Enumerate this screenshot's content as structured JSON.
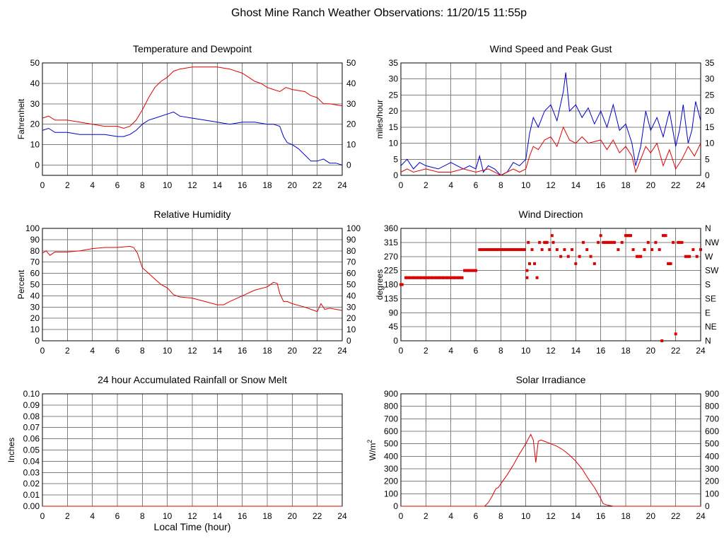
{
  "page_title": "Ghost Mine Ranch Weather Observations: 11/20/15 11:55p",
  "colors": {
    "red": "#e00000",
    "blue": "#0000c8"
  },
  "chart_data": [
    {
      "id": "temp",
      "type": "line",
      "title": "Temperature and Dewpoint",
      "ylabel": "Fahrenheit",
      "xlabel": "",
      "xlim": [
        0,
        24
      ],
      "ylim": [
        -5,
        50
      ],
      "yticks": [
        0,
        10,
        20,
        30,
        40,
        50
      ],
      "yticks_right": [
        0,
        10,
        20,
        30,
        40,
        50
      ],
      "xticks": [
        0,
        2,
        4,
        6,
        8,
        10,
        12,
        14,
        16,
        18,
        20,
        22,
        24
      ],
      "grid": true,
      "series": [
        {
          "color": "#e00000",
          "x": [
            0,
            0.5,
            1,
            2,
            3,
            4,
            5,
            6,
            6.5,
            7,
            7.5,
            8,
            8.5,
            9,
            9.5,
            10,
            10.5,
            11,
            12,
            13,
            14,
            15,
            16,
            16.5,
            17,
            17.5,
            18,
            18.5,
            19,
            19.5,
            20,
            21,
            21.5,
            22,
            22.5,
            23,
            24
          ],
          "y": [
            23,
            24,
            22,
            22,
            21,
            20,
            19,
            19,
            18,
            19,
            22,
            27,
            33,
            38,
            41,
            43,
            46,
            47,
            48,
            48,
            48,
            47,
            45,
            43,
            41,
            40,
            38,
            37,
            36,
            38,
            37,
            36,
            34,
            33,
            30,
            30,
            29
          ]
        },
        {
          "color": "#0000c8",
          "x": [
            0,
            0.5,
            1,
            2,
            3,
            4,
            5,
            6,
            6.5,
            7,
            7.5,
            8,
            8.5,
            9,
            10,
            10.5,
            11,
            12,
            13,
            14,
            15,
            16,
            17,
            18,
            18.5,
            19,
            19.3,
            19.6,
            20,
            20.5,
            21,
            21.5,
            22,
            22.5,
            23,
            23.5,
            24
          ],
          "y": [
            17,
            18,
            16,
            16,
            15,
            15,
            15,
            14,
            14,
            15,
            17,
            20,
            22,
            23,
            25,
            26,
            24,
            23,
            22,
            21,
            20,
            21,
            21,
            20,
            20,
            19,
            14,
            11,
            10,
            8,
            5,
            2,
            2,
            3,
            1,
            1,
            0
          ]
        }
      ]
    },
    {
      "id": "wind",
      "type": "line",
      "title": "Wind Speed and Peak Gust",
      "ylabel": "miles/hour",
      "xlabel": "",
      "xlim": [
        0,
        24
      ],
      "ylim": [
        0,
        35
      ],
      "yticks": [
        0,
        5,
        10,
        15,
        20,
        25,
        30,
        35
      ],
      "yticks_right": [
        0,
        5,
        10,
        15,
        20,
        25,
        30,
        35
      ],
      "xticks": [
        0,
        2,
        4,
        6,
        8,
        10,
        12,
        14,
        16,
        18,
        20,
        22,
        24
      ],
      "grid": true,
      "series": [
        {
          "color": "#0000c8",
          "x": [
            0,
            0.5,
            1,
            1.5,
            2,
            3,
            4,
            5,
            5.5,
            6,
            6.3,
            6.6,
            7,
            7.5,
            8,
            8.5,
            9,
            9.5,
            10,
            10.3,
            10.6,
            11,
            11.5,
            12,
            12.5,
            13,
            13.2,
            13.5,
            14,
            14.5,
            15,
            15.5,
            16,
            16.5,
            17,
            17.5,
            18,
            18.5,
            18.8,
            19.2,
            19.6,
            20,
            20.5,
            21,
            21.5,
            22,
            22.3,
            22.6,
            23,
            23.3,
            23.6,
            24
          ],
          "y": [
            3,
            5,
            2,
            4,
            3,
            2,
            4,
            2,
            3,
            2,
            6,
            1,
            3,
            2,
            0,
            1,
            4,
            3,
            5,
            13,
            18,
            15,
            20,
            22,
            17,
            26,
            32,
            20,
            22,
            18,
            21,
            16,
            20,
            15,
            22,
            14,
            16,
            10,
            3,
            9,
            20,
            14,
            18,
            12,
            20,
            9,
            14,
            22,
            10,
            14,
            23,
            17
          ]
        },
        {
          "color": "#e00000",
          "x": [
            0,
            0.5,
            1,
            2,
            3,
            4,
            5,
            6,
            7,
            8,
            8.5,
            9,
            9.5,
            10,
            10.3,
            10.6,
            11,
            11.5,
            12,
            12.5,
            13,
            13.5,
            14,
            14.5,
            15,
            16,
            16.5,
            17,
            17.5,
            18,
            18.5,
            18.8,
            19.2,
            19.6,
            20,
            20.5,
            21,
            21.5,
            22,
            22.5,
            23,
            23.5,
            24
          ],
          "y": [
            1,
            2,
            1,
            2,
            1,
            1,
            2,
            1,
            2,
            0,
            1,
            2,
            1,
            2,
            6,
            9,
            8,
            11,
            12,
            9,
            15,
            11,
            10,
            12,
            10,
            11,
            8,
            11,
            7,
            9,
            6,
            1,
            5,
            9,
            7,
            10,
            3,
            8,
            2,
            5,
            9,
            6,
            10
          ]
        }
      ]
    },
    {
      "id": "rh",
      "type": "line",
      "title": "Relative Humidity",
      "ylabel": "Percent",
      "xlabel": "",
      "xlim": [
        0,
        24
      ],
      "ylim": [
        0,
        100
      ],
      "yticks": [
        0,
        10,
        20,
        30,
        40,
        50,
        60,
        70,
        80,
        90,
        100
      ],
      "yticks_right": [
        0,
        10,
        20,
        30,
        40,
        50,
        60,
        70,
        80,
        90,
        100
      ],
      "xticks": [
        0,
        2,
        4,
        6,
        8,
        10,
        12,
        14,
        16,
        18,
        20,
        22,
        24
      ],
      "grid": true,
      "series": [
        {
          "color": "#e00000",
          "x": [
            0,
            0.3,
            0.6,
            1,
            2,
            3,
            4,
            5,
            6,
            7,
            7.3,
            7.6,
            8,
            8.5,
            9,
            9.5,
            10,
            10.5,
            11,
            12,
            13,
            14,
            14.5,
            15,
            16,
            17,
            18,
            18.5,
            18.8,
            19,
            19.3,
            19.6,
            20,
            21,
            21.5,
            22,
            22.3,
            22.6,
            23,
            24
          ],
          "y": [
            78,
            80,
            76,
            79,
            79,
            80,
            82,
            83,
            83,
            84,
            83,
            78,
            65,
            60,
            55,
            50,
            47,
            41,
            39,
            38,
            35,
            32,
            32,
            35,
            40,
            45,
            48,
            52,
            51,
            42,
            35,
            35,
            33,
            30,
            28,
            26,
            33,
            28,
            29,
            27
          ]
        }
      ]
    },
    {
      "id": "dir",
      "type": "scatter",
      "title": "Wind Direction",
      "ylabel": "degrees",
      "xlabel": "",
      "xlim": [
        0,
        24
      ],
      "ylim": [
        0,
        360
      ],
      "yticks": [
        0,
        45,
        90,
        135,
        180,
        225,
        270,
        315,
        360
      ],
      "yticks_right": [
        "N",
        "NE",
        "E",
        "SE",
        "S",
        "SW",
        "W",
        "NW",
        "N"
      ],
      "xticks": [
        0,
        2,
        4,
        6,
        8,
        10,
        12,
        14,
        16,
        18,
        20,
        22,
        24
      ],
      "grid": true,
      "series": [
        {
          "color": "#e00000",
          "x": [
            0,
            0.1,
            0.4,
            0.7,
            1,
            1.3,
            1.6,
            1.9,
            2.2,
            2.5,
            2.8,
            3.1,
            3.4,
            3.7,
            4,
            4.3,
            4.6,
            4.9,
            5.1,
            5.4,
            5.7,
            6,
            6.3,
            6.6,
            6.9,
            7.2,
            7.5,
            7.8,
            8.1,
            8.4,
            8.7,
            9,
            9.3,
            9.6,
            9.9,
            10.1,
            10.1,
            10.2,
            10.3,
            10.5,
            10.7,
            10.9,
            11.1,
            11.3,
            11.5,
            11.7,
            11.9,
            12.1,
            12.2,
            12.5,
            12.8,
            13.1,
            13.4,
            13.7,
            14,
            14.3,
            14.6,
            14.9,
            15.2,
            15.5,
            15.8,
            16,
            16.2,
            16.5,
            16.8,
            17.1,
            17.4,
            17.7,
            18,
            18.2,
            18.4,
            18.6,
            18.9,
            19.2,
            19.5,
            19.8,
            20.1,
            20.4,
            20.7,
            20.9,
            21,
            21.2,
            21.4,
            21.6,
            21.8,
            22,
            22.2,
            22.5,
            22.8,
            23.1,
            23.4,
            23.7,
            24
          ],
          "y": [
            180,
            180,
            202,
            202,
            202,
            202,
            202,
            202,
            202,
            202,
            202,
            202,
            202,
            202,
            202,
            202,
            202,
            202,
            225,
            225,
            225,
            225,
            292,
            292,
            292,
            292,
            292,
            292,
            292,
            292,
            292,
            292,
            292,
            292,
            292,
            202,
            225,
            315,
            247,
            292,
            247,
            202,
            315,
            292,
            315,
            315,
            292,
            337,
            315,
            292,
            270,
            292,
            270,
            292,
            247,
            270,
            315,
            292,
            270,
            247,
            315,
            337,
            315,
            315,
            315,
            315,
            292,
            315,
            337,
            337,
            337,
            292,
            270,
            270,
            292,
            315,
            292,
            315,
            292,
            0,
            337,
            337,
            247,
            247,
            315,
            22,
            315,
            315,
            270,
            270,
            292,
            270,
            292
          ]
        }
      ]
    },
    {
      "id": "rain",
      "type": "line",
      "title": "24 hour Accumulated Rainfall or Snow Melt",
      "ylabel": "Inches",
      "xlabel": "Local Time (hour)",
      "xlim": [
        0,
        24
      ],
      "ylim": [
        0,
        0.1
      ],
      "yticks": [
        "0.00",
        "0.01",
        "0.02",
        "0.03",
        "0.04",
        "0.05",
        "0.06",
        "0.07",
        "0.08",
        "0.09",
        "0.10"
      ],
      "xticks": [
        0,
        2,
        4,
        6,
        8,
        10,
        12,
        14,
        16,
        18,
        20,
        22,
        24
      ],
      "grid": true,
      "series": [
        {
          "color": "#e00000",
          "x": [
            0,
            24
          ],
          "y": [
            0,
            0
          ]
        }
      ]
    },
    {
      "id": "solar",
      "type": "line",
      "title": "Solar Irradiance",
      "ylabel": "W/m",
      "ylabel_sup": "2",
      "xlabel": "",
      "xlim": [
        0,
        24
      ],
      "ylim": [
        0,
        900
      ],
      "yticks": [
        0,
        100,
        200,
        300,
        400,
        500,
        600,
        700,
        800,
        900
      ],
      "yticks_right": [
        0,
        100,
        200,
        300,
        400,
        500,
        600,
        700,
        800,
        900
      ],
      "xticks": [
        0,
        2,
        4,
        6,
        8,
        10,
        12,
        14,
        16,
        18,
        20,
        22,
        24
      ],
      "grid": true,
      "series": [
        {
          "color": "#e00000",
          "x": [
            0,
            6.7,
            7,
            7.3,
            7.6,
            7.8,
            8,
            8.5,
            9,
            9.5,
            10,
            10.2,
            10.4,
            10.6,
            10.8,
            11,
            11.2,
            11.5,
            12,
            12.5,
            13,
            13.5,
            14,
            14.5,
            15,
            15.5,
            16,
            16.2,
            16.5,
            17,
            24
          ],
          "y": [
            0,
            0,
            30,
            80,
            140,
            150,
            180,
            250,
            330,
            420,
            500,
            540,
            575,
            530,
            350,
            520,
            530,
            520,
            500,
            480,
            450,
            410,
            360,
            300,
            220,
            150,
            60,
            20,
            10,
            0,
            0
          ]
        }
      ]
    }
  ]
}
